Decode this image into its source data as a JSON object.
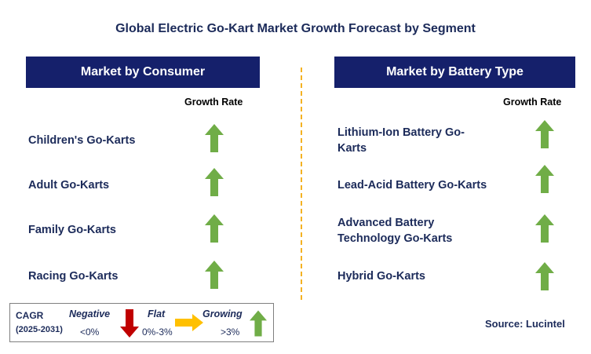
{
  "title": "Global Electric Go-Kart Market Growth Forecast by Segment",
  "left_panel": {
    "header": "Market by Consumer",
    "growth_rate_label": "Growth Rate",
    "rows": [
      {
        "label": "Children's Go-Karts",
        "trend": "growing"
      },
      {
        "label": "Adult Go-Karts",
        "trend": "growing"
      },
      {
        "label": "Family Go-Karts",
        "trend": "growing"
      },
      {
        "label": "Racing Go-Karts",
        "trend": "growing"
      }
    ]
  },
  "right_panel": {
    "header": "Market by Battery Type",
    "growth_rate_label": "Growth Rate",
    "rows": [
      {
        "label_lines": [
          "Lithium-Ion Battery Go-",
          "Karts"
        ],
        "trend": "growing"
      },
      {
        "label_lines": [
          "Lead-Acid Battery Go-Karts"
        ],
        "trend": "growing"
      },
      {
        "label_lines": [
          "Advanced Battery",
          "Technology Go-Karts"
        ],
        "trend": "growing"
      },
      {
        "label_lines": [
          "Hybrid Go-Karts"
        ],
        "trend": "growing"
      }
    ]
  },
  "legend": {
    "cagr": "CAGR",
    "years": "(2025-2031)",
    "negative": {
      "label": "Negative",
      "range": "<0%",
      "color": "#c00000"
    },
    "flat": {
      "label": "Flat",
      "range": "0%-3%",
      "color": "#ffc000"
    },
    "growing": {
      "label": "Growing",
      "range": ">3%",
      "color": "#70ad47"
    }
  },
  "source": "Source: Lucintel",
  "colors": {
    "header_bg": "#15206b",
    "text": "#1c2b5a",
    "divider": "#f4b223",
    "up_arrow": "#70ad47"
  },
  "chart_data": {
    "type": "table",
    "title": "Global Electric Go-Kart Market Growth Forecast by Segment",
    "segments": [
      {
        "segment": "Market by Consumer",
        "categories": [
          "Children's Go-Karts",
          "Adult Go-Karts",
          "Family Go-Karts",
          "Racing Go-Karts"
        ],
        "growth": [
          "Growing",
          "Growing",
          "Growing",
          "Growing"
        ]
      },
      {
        "segment": "Market by Battery Type",
        "categories": [
          "Lithium-Ion Battery Go-Karts",
          "Lead-Acid Battery Go-Karts",
          "Advanced Battery Technology Go-Karts",
          "Hybrid Go-Karts"
        ],
        "growth": [
          "Growing",
          "Growing",
          "Growing",
          "Growing"
        ]
      }
    ]
  }
}
